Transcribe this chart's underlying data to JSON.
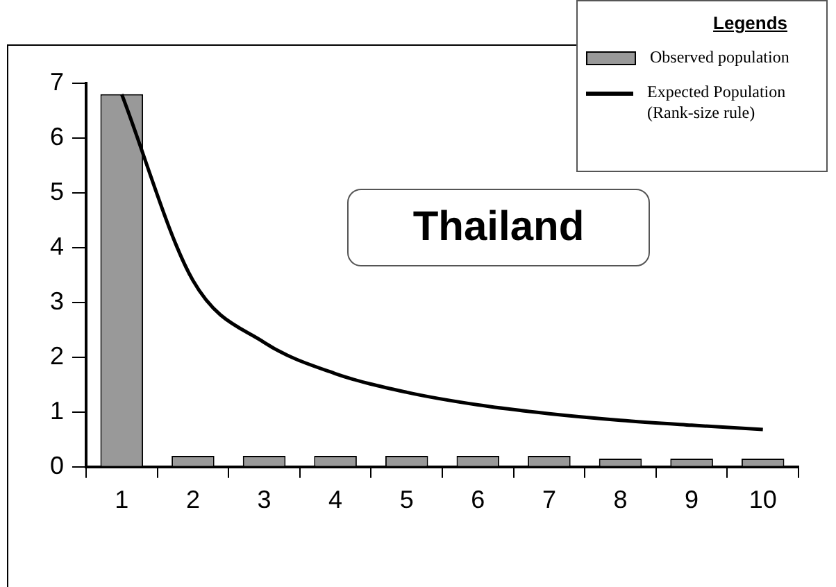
{
  "chart_data": {
    "type": "bar",
    "title": "Thailand",
    "legend_title": "Legends",
    "categories": [
      "1",
      "2",
      "3",
      "4",
      "5",
      "6",
      "7",
      "8",
      "9",
      "10"
    ],
    "series": [
      {
        "name": "Observed population",
        "color": "#999999",
        "values": [
          6.8,
          0.2,
          0.2,
          0.2,
          0.2,
          0.2,
          0.2,
          0.15,
          0.15,
          0.15
        ]
      },
      {
        "name": "Expected Population (Rank-size rule)",
        "type": "line",
        "color": "#000000",
        "values": [
          6.8,
          3.4,
          2.27,
          1.7,
          1.36,
          1.13,
          0.97,
          0.85,
          0.76,
          0.68
        ]
      }
    ],
    "ylim": [
      0,
      7
    ],
    "yticks": [
      0,
      1,
      2,
      3,
      4,
      5,
      6,
      7
    ],
    "grid": false,
    "legend": "top right",
    "marker": "none",
    "line_style": "solid"
  }
}
